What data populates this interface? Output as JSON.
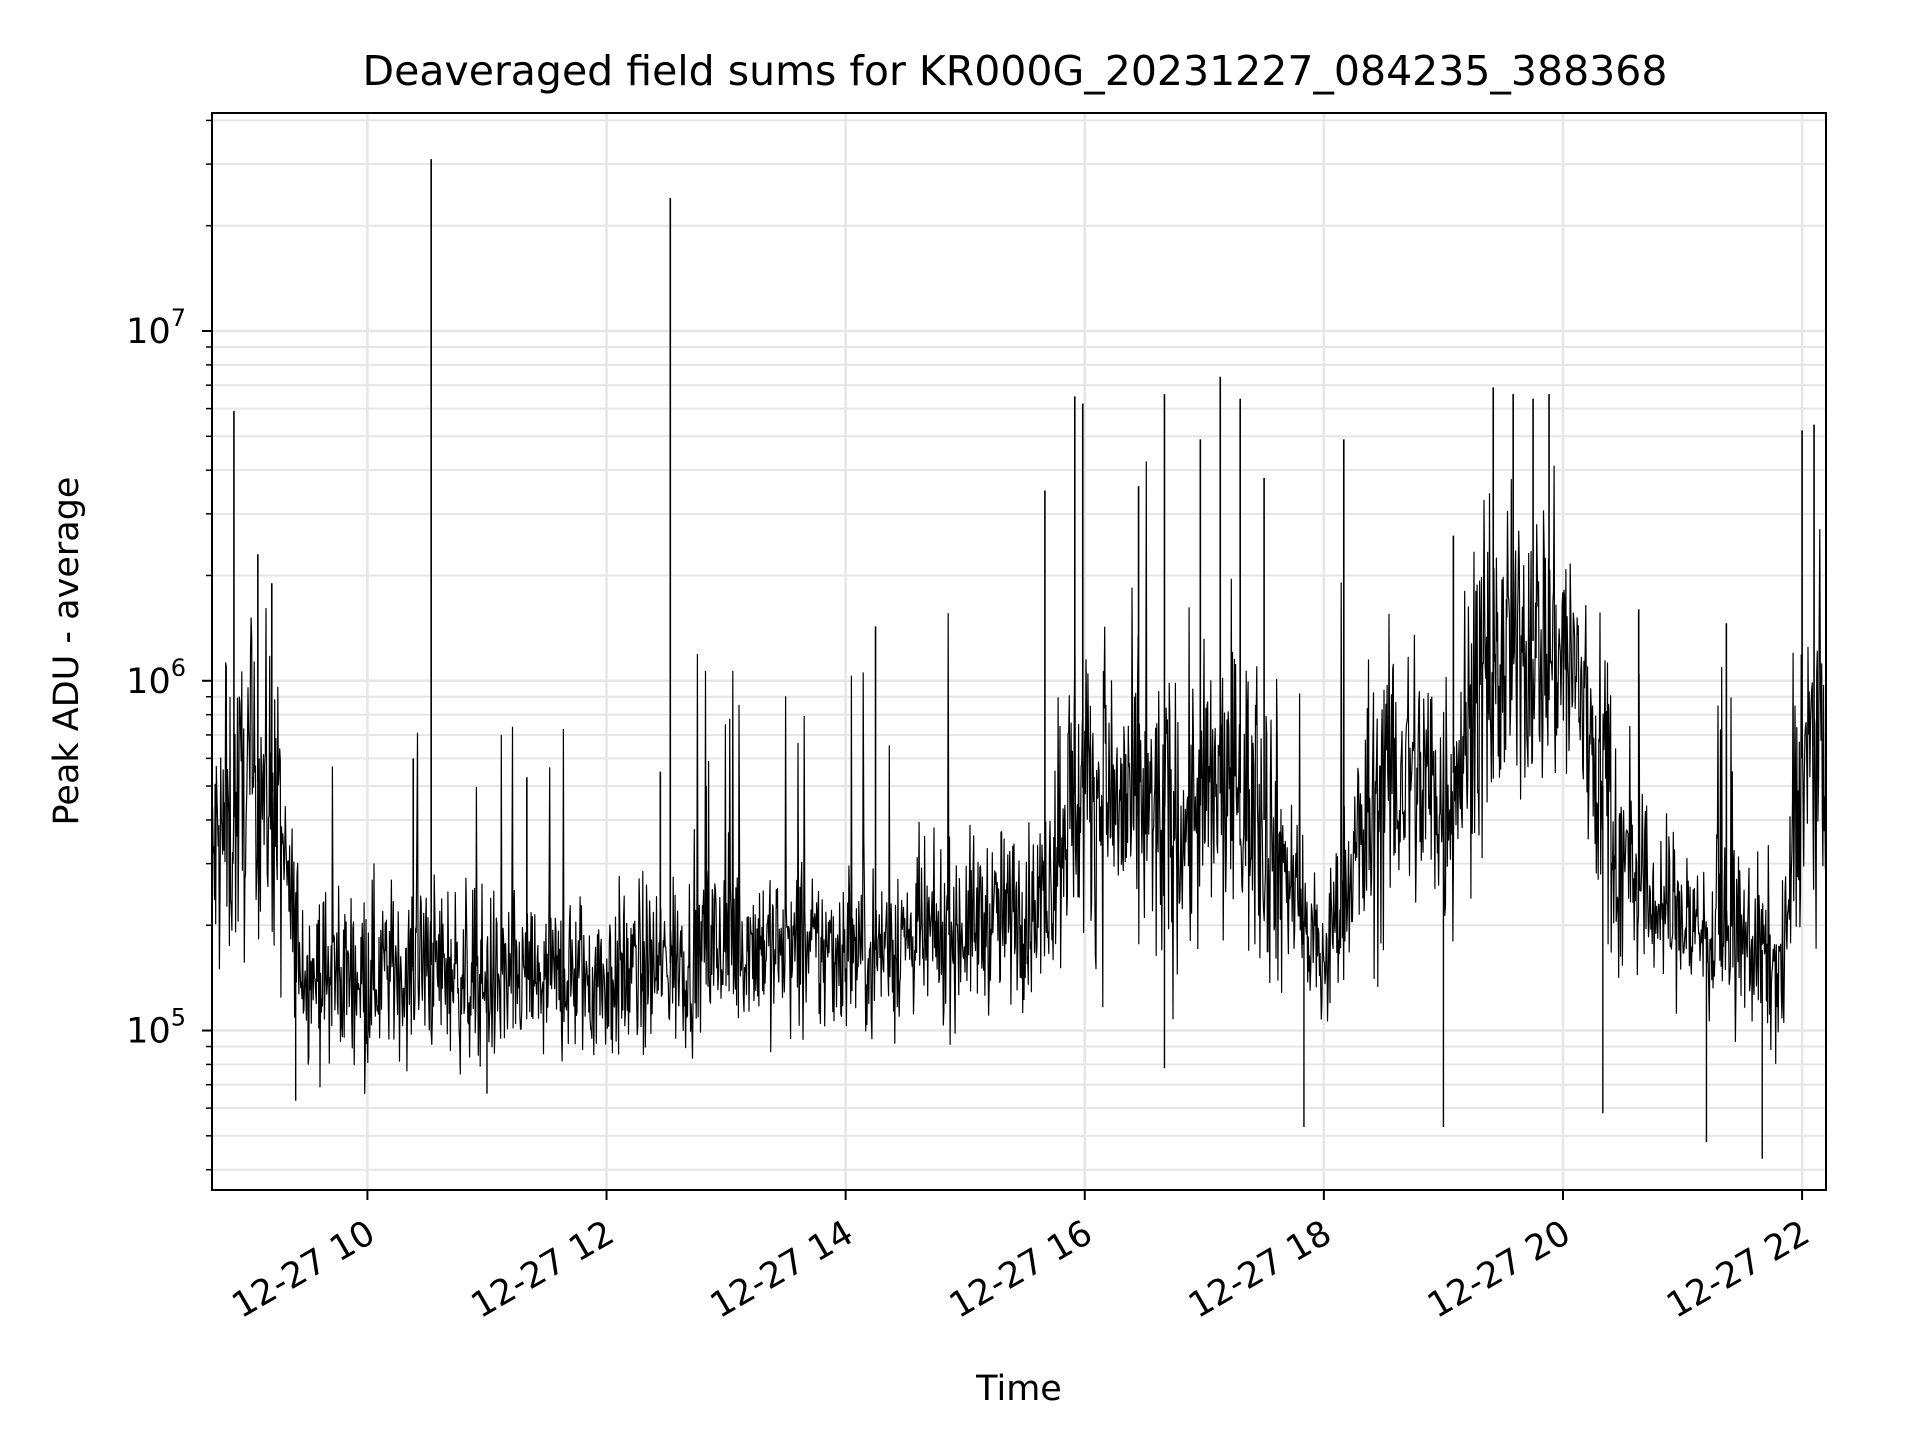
{
  "chart_data": {
    "type": "line",
    "title": "Deaveraged field sums for KR000G_20231227_084235_388368",
    "xlabel": "Time",
    "ylabel": "Peak ADU - average",
    "yscale": "log",
    "ylim": [
      35000,
      42000000
    ],
    "xlim": [
      "2023-12-27 08:42",
      "2023-12-27 22:12"
    ],
    "grid": true,
    "line_color": "#000000",
    "x_ticks": [
      {
        "value": "2023-12-27 10:00",
        "label": "12-27 10"
      },
      {
        "value": "2023-12-27 12:00",
        "label": "12-27 12"
      },
      {
        "value": "2023-12-27 14:00",
        "label": "12-27 14"
      },
      {
        "value": "2023-12-27 16:00",
        "label": "12-27 16"
      },
      {
        "value": "2023-12-27 18:00",
        "label": "12-27 18"
      },
      {
        "value": "2023-12-27 20:00",
        "label": "12-27 20"
      },
      {
        "value": "2023-12-27 22:00",
        "label": "12-27 22"
      }
    ],
    "y_ticks": [
      {
        "value": 100000,
        "label_base": "10",
        "label_exp": "5"
      },
      {
        "value": 1000000,
        "label_base": "10",
        "label_exp": "6"
      },
      {
        "value": 10000000,
        "label_base": "10",
        "label_exp": "7"
      }
    ],
    "series": [
      {
        "x": [
          "2023-12-27 08:42",
          "2023-12-27 08:48",
          "2023-12-27 08:54",
          "2023-12-27 09:00",
          "2023-12-27 09:06",
          "2023-12-27 09:12",
          "2023-12-27 09:18",
          "2023-12-27 09:24",
          "2023-12-27 09:30",
          "2023-12-27 09:40",
          "2023-12-27 09:50",
          "2023-12-27 10:00",
          "2023-12-27 10:10",
          "2023-12-27 10:20",
          "2023-12-27 10:30",
          "2023-12-27 10:40",
          "2023-12-27 10:50",
          "2023-12-27 11:00",
          "2023-12-27 11:10",
          "2023-12-27 11:20",
          "2023-12-27 11:30",
          "2023-12-27 11:40",
          "2023-12-27 11:50",
          "2023-12-27 12:00",
          "2023-12-27 12:10",
          "2023-12-27 12:20",
          "2023-12-27 12:30",
          "2023-12-27 12:40",
          "2023-12-27 12:50",
          "2023-12-27 13:00",
          "2023-12-27 13:15",
          "2023-12-27 13:30",
          "2023-12-27 13:45",
          "2023-12-27 14:00",
          "2023-12-27 14:15",
          "2023-12-27 14:30",
          "2023-12-27 14:45",
          "2023-12-27 15:00",
          "2023-12-27 15:15",
          "2023-12-27 15:30",
          "2023-12-27 15:40",
          "2023-12-27 15:50",
          "2023-12-27 16:00",
          "2023-12-27 16:15",
          "2023-12-27 16:30",
          "2023-12-27 16:45",
          "2023-12-27 17:00",
          "2023-12-27 17:15",
          "2023-12-27 17:30",
          "2023-12-27 17:40",
          "2023-12-27 17:50",
          "2023-12-27 18:00",
          "2023-12-27 18:10",
          "2023-12-27 18:20",
          "2023-12-27 18:30",
          "2023-12-27 18:45",
          "2023-12-27 19:00",
          "2023-12-27 19:15",
          "2023-12-27 19:30",
          "2023-12-27 19:45",
          "2023-12-27 20:00",
          "2023-12-27 20:10",
          "2023-12-27 20:20",
          "2023-12-27 20:30",
          "2023-12-27 20:45",
          "2023-12-27 21:00",
          "2023-12-27 21:15",
          "2023-12-27 21:30",
          "2023-12-27 21:40",
          "2023-12-27 21:50",
          "2023-12-27 22:00",
          "2023-12-27 22:12"
        ],
        "values": [
          300000,
          350000,
          420000,
          480000,
          520000,
          480000,
          300000,
          190000,
          150000,
          140000,
          145000,
          150000,
          150000,
          145000,
          155000,
          150000,
          140000,
          140000,
          135000,
          140000,
          135000,
          145000,
          140000,
          140000,
          145000,
          150000,
          155000,
          160000,
          170000,
          175000,
          180000,
          170000,
          165000,
          175000,
          170000,
          185000,
          180000,
          200000,
          210000,
          220000,
          240000,
          450000,
          500000,
          450000,
          400000,
          380000,
          450000,
          500000,
          400000,
          300000,
          200000,
          150000,
          250000,
          350000,
          500000,
          550000,
          450000,
          800000,
          1100000,
          1300000,
          1200000,
          900000,
          500000,
          300000,
          230000,
          210000,
          180000,
          180000,
          170000,
          140000,
          600000,
          700000
        ]
      }
    ],
    "spikes": [
      {
        "x": "2023-12-27 08:53",
        "y": 5900000
      },
      {
        "x": "2023-12-27 09:05",
        "y": 2300000
      },
      {
        "x": "2023-12-27 09:12",
        "y": 1900000
      },
      {
        "x": "2023-12-27 10:23",
        "y": 600000
      },
      {
        "x": "2023-12-27 10:32",
        "y": 31000000
      },
      {
        "x": "2023-12-27 11:20",
        "y": 530000
      },
      {
        "x": "2023-12-27 12:27",
        "y": 550000
      },
      {
        "x": "2023-12-27 12:32",
        "y": 24000000
      },
      {
        "x": "2023-12-27 12:50",
        "y": 500000
      },
      {
        "x": "2023-12-27 14:15",
        "y": 1430000
      },
      {
        "x": "2023-12-27 15:40",
        "y": 3500000
      },
      {
        "x": "2023-12-27 15:55",
        "y": 6500000
      },
      {
        "x": "2023-12-27 15:59",
        "y": 6200000
      },
      {
        "x": "2023-12-27 16:27",
        "y": 3600000
      },
      {
        "x": "2023-12-27 16:40",
        "y": 6600000
      },
      {
        "x": "2023-12-27 16:58",
        "y": 4900000
      },
      {
        "x": "2023-12-27 17:08",
        "y": 7400000
      },
      {
        "x": "2023-12-27 17:18",
        "y": 6400000
      },
      {
        "x": "2023-12-27 17:30",
        "y": 3800000
      },
      {
        "x": "2023-12-27 18:10",
        "y": 4900000
      },
      {
        "x": "2023-12-27 19:05",
        "y": 2600000
      },
      {
        "x": "2023-12-27 19:25",
        "y": 6900000
      },
      {
        "x": "2023-12-27 19:35",
        "y": 6600000
      },
      {
        "x": "2023-12-27 19:45",
        "y": 6400000
      },
      {
        "x": "2023-12-27 19:53",
        "y": 6600000
      },
      {
        "x": "2023-12-27 20:38",
        "y": 1600000
      },
      {
        "x": "2023-12-27 21:22",
        "y": 1460000
      },
      {
        "x": "2023-12-27 22:00",
        "y": 5200000
      },
      {
        "x": "2023-12-27 22:06",
        "y": 5400000
      }
    ],
    "dips": [
      {
        "x": "2023-12-27 09:24",
        "y": 63000
      },
      {
        "x": "2023-12-27 11:00",
        "y": 66000
      },
      {
        "x": "2023-12-27 17:50",
        "y": 53000
      },
      {
        "x": "2023-12-27 19:00",
        "y": 53000
      },
      {
        "x": "2023-12-27 21:12",
        "y": 48000
      },
      {
        "x": "2023-12-27 21:40",
        "y": 43000
      },
      {
        "x": "2023-12-27 16:40",
        "y": 78000
      },
      {
        "x": "2023-12-27 20:20",
        "y": 58000
      }
    ]
  }
}
